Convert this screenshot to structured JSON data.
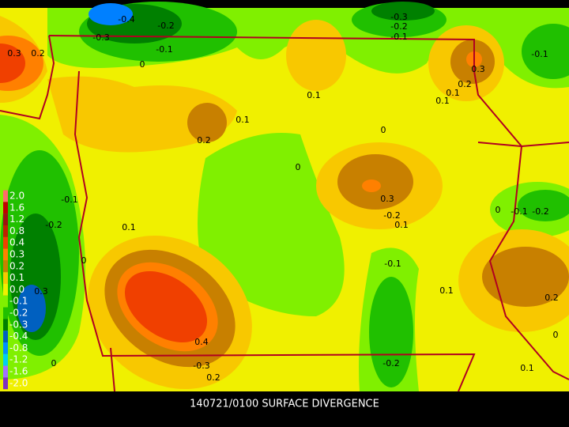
{
  "title": "140721/0100 SURFACE DIVERGENCE",
  "legend": [
    {
      "label": "2.0",
      "color": "#ff6a6a"
    },
    {
      "label": "1.6",
      "color": "#c00000"
    },
    {
      "label": "1.2",
      "color": "#a01010"
    },
    {
      "label": "0.8",
      "color": "#c02000"
    },
    {
      "label": "0.4",
      "color": "#f04000"
    },
    {
      "label": "0.3",
      "color": "#ff8000"
    },
    {
      "label": "0.2",
      "color": "#c88000"
    },
    {
      "label": "0.1",
      "color": "#f8c800"
    },
    {
      "label": "0.0",
      "color": "#f0f000"
    },
    {
      "label": "-0.1",
      "color": "#80f000"
    },
    {
      "label": "-0.2",
      "color": "#20c000"
    },
    {
      "label": "-0.3",
      "color": "#008000"
    },
    {
      "label": "-0.4",
      "color": "#0060c0"
    },
    {
      "label": "-0.8",
      "color": "#0090ff"
    },
    {
      "label": "-1.2",
      "color": "#00d0f0"
    },
    {
      "label": "-1.6",
      "color": "#a070ff"
    },
    {
      "label": "-2.0",
      "color": "#8030c0"
    }
  ],
  "contour_labels": [
    "-0.4",
    "-0.2",
    "-0.3",
    "-0.1",
    "0",
    "0.3",
    "0.2",
    "-0.3",
    "-0.2",
    "-0.1",
    "-0.1",
    "0.3",
    "0.2",
    "0.1",
    "0.1",
    "0.1",
    "0.1",
    "0.2",
    "0",
    "0",
    "0.3",
    "-0.2",
    "0.1",
    "-0.1",
    "-0.2",
    "0",
    "-0.1",
    "-0.2",
    "0.1",
    "0",
    "-0.1",
    "0.3",
    "0.1",
    "0.2",
    "0.4",
    "-0.3",
    "0.2",
    "-0.2",
    "0.1",
    "0",
    "0"
  ]
}
